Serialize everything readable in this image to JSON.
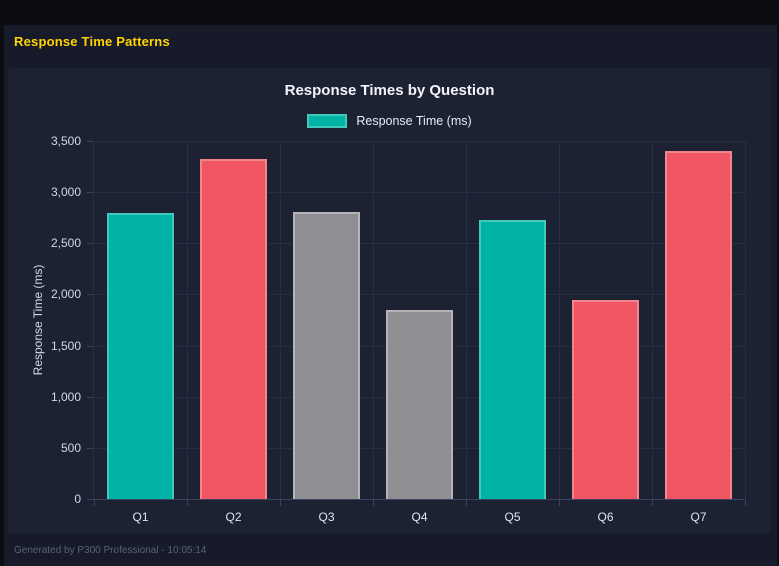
{
  "page": {
    "heading": "Response Time Patterns",
    "footer": "Generated by P300 Professional - 10:05:14"
  },
  "colors": {
    "heading_yellow": "#ffd400",
    "page_background": "#171b29",
    "card_background": "#1d2233",
    "gridline": "#282d43",
    "teal": "#00b3a4",
    "red": "#ef5661",
    "gray": "#8e8e93"
  },
  "chart_data": {
    "type": "bar",
    "title": "Response Times by Question",
    "legend": [
      {
        "label": "Response Time (ms)",
        "color": "#00b3a4",
        "border": "#3fcabb"
      }
    ],
    "categories": [
      "Q1",
      "Q2",
      "Q3",
      "Q4",
      "Q5",
      "Q6",
      "Q7"
    ],
    "values": [
      2800,
      3320,
      2810,
      1850,
      2730,
      1950,
      3400
    ],
    "bar_colors": [
      "#00b3a4",
      "#ef5661",
      "#8e8e93",
      "#8e8e93",
      "#00b3a4",
      "#ef5661",
      "#ef5661"
    ],
    "bar_border_colors": [
      "#3fcabb",
      "#f4858e",
      "#b4b4b9",
      "#b4b4b9",
      "#3fcabb",
      "#f4858e",
      "#f4858e"
    ],
    "xlabel": "",
    "ylabel": "Response Time (ms)",
    "ylim": [
      0,
      3500
    ],
    "ytick_step": 500,
    "grid": true,
    "legend_position": "top"
  }
}
